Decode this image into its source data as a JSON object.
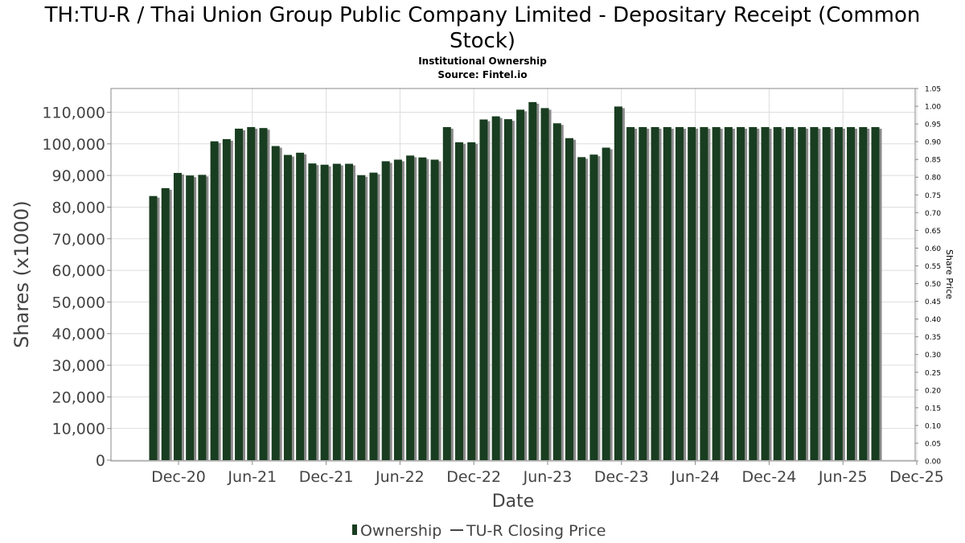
{
  "chart_data": {
    "type": "bar",
    "title_line1": "TH:TU-R / Thai Union Group Public Company Limited - Depositary Receipt (Common",
    "title_line2": "Stock)",
    "subtitle_line1": "Institutional Ownership",
    "subtitle_line2": "Source: Fintel.io",
    "xlabel": "Date",
    "ylabel": "Shares (x1000)",
    "y2label": "Share Price",
    "ylim": [
      0,
      117500
    ],
    "y2lim": [
      0,
      1.05
    ],
    "grid": true,
    "legend_position": "bottom",
    "colors": {
      "bar": "#193d20",
      "bar_shadow": "#8a8a8a",
      "grid": "#dddddd",
      "axis": "#888888"
    },
    "x_ticks": [
      "Dec-20",
      "Jun-21",
      "Dec-21",
      "Jun-22",
      "Dec-22",
      "Jun-23",
      "Dec-23",
      "Jun-24",
      "Dec-24",
      "Jun-25",
      "Dec-25"
    ],
    "y_ticks": [
      "0",
      "10,000",
      "20,000",
      "30,000",
      "40,000",
      "50,000",
      "60,000",
      "70,000",
      "80,000",
      "90,000",
      "100,000",
      "110,000"
    ],
    "y2_ticks": [
      "0.00",
      "0.05",
      "0.10",
      "0.15",
      "0.20",
      "0.25",
      "0.30",
      "0.35",
      "0.40",
      "0.45",
      "0.50",
      "0.55",
      "0.60",
      "0.65",
      "0.70",
      "0.75",
      "0.80",
      "0.85",
      "0.90",
      "0.95",
      "1.00",
      "1.05"
    ],
    "series": [
      {
        "name": "Ownership",
        "values": [
          83500,
          86000,
          90800,
          90000,
          90200,
          100800,
          101500,
          104800,
          105300,
          105000,
          99300,
          96500,
          97200,
          93800,
          93400,
          93700,
          93700,
          90100,
          90900,
          94500,
          95000,
          96300,
          95700,
          95000,
          105300,
          100500,
          100500,
          107700,
          108700,
          107800,
          110800,
          113200,
          111300,
          106500,
          101800,
          95800,
          96600,
          98800,
          111800,
          105300,
          105300,
          105300,
          105300,
          105300,
          105300,
          105300,
          105300,
          105300,
          105300,
          105300,
          105300,
          105300,
          105300,
          105300,
          105300,
          105300,
          105300,
          105300,
          105300,
          105300
        ]
      },
      {
        "name": "TU-R Closing Price",
        "values": []
      }
    ],
    "legend": [
      {
        "label": "Ownership",
        "marker": "bar"
      },
      {
        "label": "TU-R Closing Price",
        "marker": "line"
      }
    ]
  }
}
